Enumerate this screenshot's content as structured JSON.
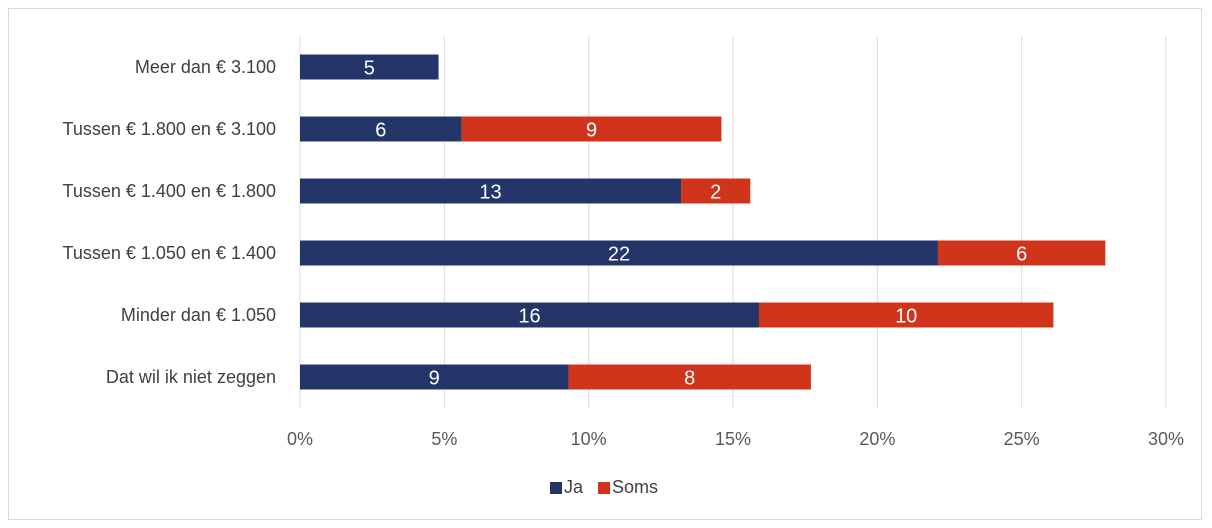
{
  "chart_data": {
    "type": "bar",
    "orientation": "horizontal",
    "stacked": true,
    "categories": [
      "Meer dan € 3.100",
      "Tussen € 1.800 en € 3.100",
      "Tussen € 1.400 en € 1.800",
      "Tussen € 1.050 en € 1.400",
      "Minder dan € 1.050",
      "Dat wil ik niet zeggen"
    ],
    "series": [
      {
        "name": "Ja",
        "color": "#243669",
        "values": [
          4.8,
          5.6,
          13.2,
          22.1,
          15.9,
          9.3
        ],
        "labels": [
          "5",
          "6",
          "13",
          "22",
          "16",
          "9"
        ]
      },
      {
        "name": "Soms",
        "color": "#d0351b",
        "values": [
          0,
          9.0,
          2.4,
          5.8,
          10.2,
          8.4
        ],
        "labels": [
          "",
          "9",
          "2",
          "6",
          "10",
          "8"
        ]
      }
    ],
    "x_ticks": [
      "0%",
      "5%",
      "10%",
      "15%",
      "20%",
      "25%",
      "30%"
    ],
    "xlim": [
      0,
      30
    ],
    "grid": "vertical",
    "legend_position": "bottom",
    "title": "",
    "xlabel": "",
    "ylabel": ""
  }
}
